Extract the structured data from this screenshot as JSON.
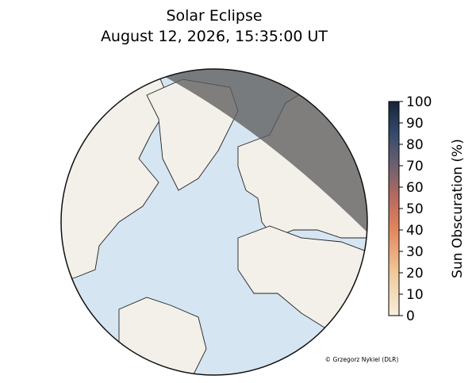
{
  "title": "Solar Eclipse",
  "subtitle": "August 12, 2026, 15:35:00 UT",
  "colorbar": {
    "label": "Sun Obscuration (%)",
    "lim": [
      0,
      100
    ],
    "ticks": [
      0,
      10,
      20,
      30,
      40,
      50,
      60,
      70,
      80,
      90,
      100
    ]
  },
  "credit": "© Grzegorz Nykiel (DLR)"
}
